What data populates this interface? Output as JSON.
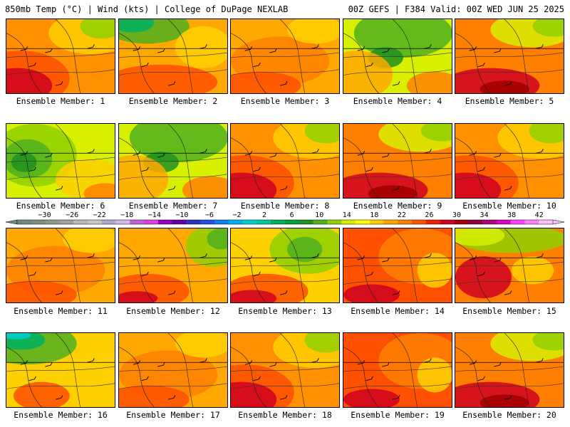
{
  "header": {
    "left": "850mb Temp (°C) | Wind (kts) | College of DuPage NEXLAB",
    "right": "00Z GEFS | F384 Valid: 00Z WED JUN 25 2025"
  },
  "caption_prefix": "Ensemble Member: ",
  "members": [
    {
      "num": "1",
      "theme": "hot-sw"
    },
    {
      "num": "2",
      "theme": "warm-n"
    },
    {
      "num": "3",
      "theme": "warm"
    },
    {
      "num": "4",
      "theme": "green-n"
    },
    {
      "num": "5",
      "theme": "hot-south"
    },
    {
      "num": "6",
      "theme": "low-west"
    },
    {
      "num": "7",
      "theme": "green-n"
    },
    {
      "num": "8",
      "theme": "hot-sw"
    },
    {
      "num": "9",
      "theme": "hot-south"
    },
    {
      "num": "10",
      "theme": "hot-sw"
    },
    {
      "num": "11",
      "theme": "warm"
    },
    {
      "num": "12",
      "theme": "warm-ne"
    },
    {
      "num": "13",
      "theme": "green-ne"
    },
    {
      "num": "14",
      "theme": "hot"
    },
    {
      "num": "15",
      "theme": "green-spots"
    },
    {
      "num": "16",
      "theme": "cool-nw"
    },
    {
      "num": "17",
      "theme": "warm"
    },
    {
      "num": "18",
      "theme": "hot-sw"
    },
    {
      "num": "19",
      "theme": "hot"
    },
    {
      "num": "20",
      "theme": "hot-south"
    }
  ],
  "colorbar": {
    "labels": [
      "−30",
      "−26",
      "−22",
      "−18",
      "−14",
      "−10",
      "−6",
      "−2",
      "2",
      "6",
      "10",
      "14",
      "18",
      "22",
      "26",
      "30",
      "34",
      "38",
      "42"
    ],
    "colors": [
      "#6f8a7e",
      "#7d8f7f",
      "#8a9a8a",
      "#a0a0a0",
      "#b8b8b8",
      "#c8c8c8",
      "#b0a8d0",
      "#d0b8e8",
      "#c060d8",
      "#e040e0",
      "#9000c0",
      "#6000a0",
      "#3030c0",
      "#2050e0",
      "#1080f0",
      "#00b0f0",
      "#00d0d0",
      "#00c8a0",
      "#00b060",
      "#00a040",
      "#209020",
      "#50b020",
      "#90d000",
      "#d8f000",
      "#ffff00",
      "#ffd000",
      "#ffa800",
      "#ff8000",
      "#ff5000",
      "#f02000",
      "#d00020",
      "#a00000",
      "#900040",
      "#b00080",
      "#e000c0",
      "#ff40ff",
      "#ff80ff",
      "#ffc0ff"
    ],
    "min": -34,
    "max": 44
  }
}
